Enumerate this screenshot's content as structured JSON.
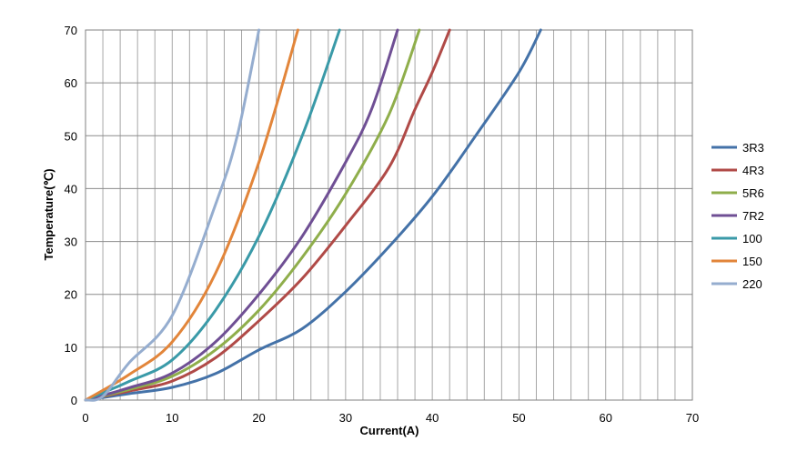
{
  "chart_data": {
    "type": "line",
    "title": "",
    "xlabel": "Current(A)",
    "ylabel": "Temperature(℃)",
    "xlim": [
      0,
      70
    ],
    "ylim": [
      0,
      70
    ],
    "x_ticks": [
      "0",
      "10",
      "20",
      "30",
      "40",
      "50",
      "60",
      "70"
    ],
    "y_ticks": [
      "0",
      "10",
      "20",
      "30",
      "40",
      "50",
      "60",
      "70"
    ],
    "grid": "major every 10, minor every 2",
    "legend_position": "right",
    "series": [
      {
        "name": "3R3",
        "color": "#4472A8",
        "points": [
          [
            0,
            0
          ],
          [
            5,
            1.2
          ],
          [
            10,
            2.4
          ],
          [
            15,
            5
          ],
          [
            20,
            9.5
          ],
          [
            25,
            13.5
          ],
          [
            30,
            20.5
          ],
          [
            35,
            29
          ],
          [
            40,
            38.5
          ],
          [
            45,
            50
          ],
          [
            50,
            62
          ],
          [
            52.5,
            70
          ]
        ]
      },
      {
        "name": "4R3",
        "color": "#B04A47",
        "points": [
          [
            0,
            0
          ],
          [
            5,
            1.7
          ],
          [
            10,
            3.6
          ],
          [
            15,
            8
          ],
          [
            20,
            15
          ],
          [
            25,
            23
          ],
          [
            30,
            33
          ],
          [
            35,
            44
          ],
          [
            38,
            55
          ],
          [
            40,
            62
          ],
          [
            42,
            70
          ]
        ]
      },
      {
        "name": "5R6",
        "color": "#8FAE4B",
        "points": [
          [
            0,
            0
          ],
          [
            5,
            2
          ],
          [
            10,
            4.5
          ],
          [
            15,
            9.5
          ],
          [
            20,
            17
          ],
          [
            25,
            27
          ],
          [
            30,
            39
          ],
          [
            35,
            54
          ],
          [
            38.5,
            70
          ]
        ]
      },
      {
        "name": "7R2",
        "color": "#6F4F94",
        "points": [
          [
            0,
            0
          ],
          [
            5,
            2.3
          ],
          [
            10,
            5.1
          ],
          [
            15,
            11
          ],
          [
            20,
            20
          ],
          [
            25,
            31
          ],
          [
            30,
            45
          ],
          [
            33,
            55
          ],
          [
            36,
            70
          ]
        ]
      },
      {
        "name": "100",
        "color": "#3A9AA8",
        "points": [
          [
            0,
            0
          ],
          [
            5,
            3.5
          ],
          [
            10,
            7.6
          ],
          [
            15,
            17
          ],
          [
            20,
            31
          ],
          [
            25,
            50
          ],
          [
            29.3,
            70
          ]
        ]
      },
      {
        "name": "150",
        "color": "#E2853A",
        "points": [
          [
            0,
            0
          ],
          [
            5,
            4.8
          ],
          [
            10,
            11
          ],
          [
            15,
            24
          ],
          [
            20,
            45
          ],
          [
            24.5,
            70
          ]
        ]
      },
      {
        "name": "220",
        "color": "#95ADCF",
        "points": [
          [
            0,
            0
          ],
          [
            2,
            0.7
          ],
          [
            5,
            7
          ],
          [
            10,
            16
          ],
          [
            15,
            37
          ],
          [
            17.5,
            50
          ],
          [
            20,
            70
          ]
        ]
      }
    ]
  }
}
